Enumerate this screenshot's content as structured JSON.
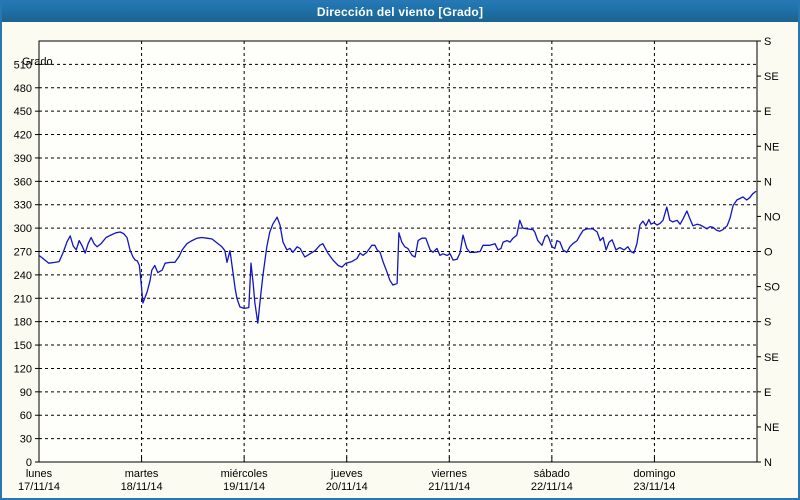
{
  "window": {
    "title": "Dirección del viento [Grado]"
  },
  "colors": {
    "titlebar": "#1e6da3",
    "window_border": "#2a76b2",
    "background": "#fbfbf2",
    "plot_background": "#fefefa",
    "grid": "#000000",
    "axis": "#000000",
    "line": "#1315c2",
    "title_text": "#ffffff"
  },
  "chart_data": {
    "type": "line",
    "title": "Dirección del viento [Grado]",
    "grid": {
      "style": "dashed",
      "horizontal_step_deg": 30,
      "vertical_at_day_starts": true
    },
    "legend": "none",
    "y_left": {
      "title": "Grado",
      "min": 0,
      "max": 540,
      "tick_step": 30,
      "tick_values": [
        0,
        30,
        60,
        90,
        120,
        150,
        180,
        210,
        240,
        270,
        300,
        330,
        360,
        390,
        420,
        450,
        480,
        510
      ]
    },
    "y_right": {
      "ticks": [
        {
          "v": 0,
          "label": "N"
        },
        {
          "v": 45,
          "label": "NE"
        },
        {
          "v": 90,
          "label": "E"
        },
        {
          "v": 135,
          "label": "SE"
        },
        {
          "v": 180,
          "label": "S"
        },
        {
          "v": 225,
          "label": "SO"
        },
        {
          "v": 270,
          "label": "O"
        },
        {
          "v": 315,
          "label": "NO"
        },
        {
          "v": 360,
          "label": "N"
        },
        {
          "v": 405,
          "label": "NE"
        },
        {
          "v": 450,
          "label": "E"
        },
        {
          "v": 495,
          "label": "SE"
        },
        {
          "v": 540,
          "label": "S"
        }
      ]
    },
    "x_axis": {
      "unit": "hours_from_monday_00",
      "min": 0,
      "max": 168,
      "day_tick_hours": [
        0,
        24,
        48,
        72,
        96,
        120,
        144
      ],
      "days": [
        {
          "name": "lunes",
          "date": "17/11/14"
        },
        {
          "name": "martes",
          "date": "18/11/14"
        },
        {
          "name": "miércoles",
          "date": "19/11/14"
        },
        {
          "name": "jueves",
          "date": "20/11/14"
        },
        {
          "name": "viernes",
          "date": "21/11/14"
        },
        {
          "name": "sábado",
          "date": "22/11/14"
        },
        {
          "name": "domingo",
          "date": "23/11/14"
        }
      ]
    },
    "series": [
      {
        "name": "Dirección del viento",
        "color": "#1315c2",
        "points": [
          [
            0,
            265
          ],
          [
            1.4,
            259
          ],
          [
            2.3,
            255
          ],
          [
            3.7,
            256
          ],
          [
            4.7,
            257
          ],
          [
            5.6,
            268
          ],
          [
            6.6,
            283
          ],
          [
            7.3,
            290
          ],
          [
            8,
            277
          ],
          [
            8.7,
            272
          ],
          [
            9.4,
            284
          ],
          [
            10.1,
            277
          ],
          [
            10.8,
            268
          ],
          [
            11.5,
            280
          ],
          [
            12.2,
            288
          ],
          [
            12.9,
            280
          ],
          [
            13.6,
            276
          ],
          [
            14.5,
            280
          ],
          [
            15.7,
            288
          ],
          [
            16.8,
            291
          ],
          [
            18,
            294
          ],
          [
            19,
            295
          ],
          [
            19.8,
            293
          ],
          [
            20.6,
            288
          ],
          [
            21.3,
            272
          ],
          [
            22,
            263
          ],
          [
            22.5,
            259
          ],
          [
            23,
            258
          ],
          [
            23.5,
            252
          ],
          [
            23.9,
            230
          ],
          [
            24.3,
            204
          ],
          [
            25.3,
            218
          ],
          [
            26,
            233
          ],
          [
            26.4,
            246
          ],
          [
            27.1,
            252
          ],
          [
            27.8,
            243
          ],
          [
            28.8,
            246
          ],
          [
            29.5,
            255
          ],
          [
            30.7,
            256
          ],
          [
            31.8,
            256
          ],
          [
            32.8,
            264
          ],
          [
            33.5,
            272
          ],
          [
            34.6,
            280
          ],
          [
            35.8,
            284
          ],
          [
            37,
            287
          ],
          [
            38.1,
            288
          ],
          [
            39.3,
            287
          ],
          [
            40.5,
            286
          ],
          [
            41.9,
            280
          ],
          [
            42.8,
            276
          ],
          [
            43.5,
            271
          ],
          [
            44,
            256
          ],
          [
            44.7,
            271
          ],
          [
            45.4,
            243
          ],
          [
            45.9,
            222
          ],
          [
            46.3,
            210
          ],
          [
            47,
            199
          ],
          [
            48,
            197
          ],
          [
            49.1,
            198
          ],
          [
            49.6,
            255
          ],
          [
            50.1,
            230
          ],
          [
            50.5,
            205
          ],
          [
            51.2,
            178
          ],
          [
            51.9,
            215
          ],
          [
            52.4,
            239
          ],
          [
            53.3,
            276
          ],
          [
            54,
            295
          ],
          [
            54.7,
            305
          ],
          [
            55.7,
            314
          ],
          [
            56.4,
            304
          ],
          [
            57.1,
            282
          ],
          [
            58,
            272
          ],
          [
            58.7,
            274
          ],
          [
            59.4,
            269
          ],
          [
            60.4,
            276
          ],
          [
            61.1,
            274
          ],
          [
            62.2,
            263
          ],
          [
            63.4,
            267
          ],
          [
            64.6,
            271
          ],
          [
            65.7,
            278
          ],
          [
            66.4,
            280
          ],
          [
            67.6,
            268
          ],
          [
            68.8,
            259
          ],
          [
            70,
            252
          ],
          [
            70.9,
            250
          ],
          [
            71.8,
            255
          ],
          [
            73.2,
            257
          ],
          [
            74.4,
            261
          ],
          [
            75.1,
            268
          ],
          [
            75.8,
            265
          ],
          [
            76.7,
            269
          ],
          [
            77.9,
            278
          ],
          [
            78.6,
            278
          ],
          [
            79.1,
            272
          ],
          [
            79.8,
            269
          ],
          [
            80.5,
            257
          ],
          [
            81.4,
            244
          ],
          [
            82.1,
            233
          ],
          [
            82.8,
            227
          ],
          [
            83.8,
            229
          ],
          [
            84.2,
            294
          ],
          [
            84.9,
            282
          ],
          [
            85.6,
            276
          ],
          [
            86.3,
            274
          ],
          [
            87.3,
            265
          ],
          [
            88,
            263
          ],
          [
            88.7,
            284
          ],
          [
            89.6,
            287
          ],
          [
            90.5,
            287
          ],
          [
            91.5,
            272
          ],
          [
            92.2,
            269
          ],
          [
            93.1,
            274
          ],
          [
            93.8,
            265
          ],
          [
            94.5,
            267
          ],
          [
            95.5,
            265
          ],
          [
            96.2,
            267
          ],
          [
            96.9,
            259
          ],
          [
            97.8,
            260
          ],
          [
            98.5,
            268
          ],
          [
            99.2,
            291
          ],
          [
            100.1,
            274
          ],
          [
            100.8,
            269
          ],
          [
            102,
            269
          ],
          [
            103.2,
            270
          ],
          [
            103.9,
            278
          ],
          [
            105.5,
            278
          ],
          [
            106.7,
            280
          ],
          [
            107.4,
            272
          ],
          [
            108.1,
            274
          ],
          [
            108.6,
            282
          ],
          [
            109.5,
            284
          ],
          [
            110.2,
            282
          ],
          [
            110.9,
            287
          ],
          [
            111.8,
            291
          ],
          [
            112.5,
            310
          ],
          [
            113.2,
            300
          ],
          [
            114.2,
            299
          ],
          [
            115.6,
            298
          ],
          [
            116,
            295
          ],
          [
            116.7,
            284
          ],
          [
            117.7,
            278
          ],
          [
            118.4,
            289
          ],
          [
            118.9,
            291
          ],
          [
            119.3,
            287
          ],
          [
            120,
            276
          ],
          [
            120.7,
            274
          ],
          [
            121.2,
            284
          ],
          [
            121.9,
            282
          ],
          [
            122.6,
            272
          ],
          [
            123.5,
            269
          ],
          [
            124.2,
            276
          ],
          [
            124.9,
            280
          ],
          [
            125.9,
            284
          ],
          [
            126.6,
            291
          ],
          [
            127.3,
            297
          ],
          [
            128.2,
            299
          ],
          [
            129.6,
            299
          ],
          [
            130.6,
            295
          ],
          [
            131.3,
            284
          ],
          [
            132,
            288
          ],
          [
            132.7,
            272
          ],
          [
            133.4,
            282
          ],
          [
            134.1,
            285
          ],
          [
            135,
            272
          ],
          [
            135.9,
            275
          ],
          [
            136.9,
            272
          ],
          [
            137.8,
            276
          ],
          [
            138.5,
            270
          ],
          [
            139.2,
            268
          ],
          [
            139.9,
            280
          ],
          [
            140.6,
            304
          ],
          [
            141.3,
            309
          ],
          [
            142,
            303
          ],
          [
            142.7,
            311
          ],
          [
            143.2,
            305
          ],
          [
            143.9,
            307
          ],
          [
            144.6,
            304
          ],
          [
            145.3,
            306
          ],
          [
            146,
            310
          ],
          [
            146.9,
            327
          ],
          [
            147.6,
            310
          ],
          [
            148.3,
            308
          ],
          [
            149.3,
            310
          ],
          [
            150,
            305
          ],
          [
            150.7,
            312
          ],
          [
            151.6,
            322
          ],
          [
            152.3,
            312
          ],
          [
            153,
            303
          ],
          [
            154,
            305
          ],
          [
            154.7,
            304
          ],
          [
            155.4,
            302
          ],
          [
            156.3,
            299
          ],
          [
            157,
            302
          ],
          [
            157.7,
            301
          ],
          [
            158.6,
            297
          ],
          [
            159.3,
            296
          ],
          [
            160,
            298
          ],
          [
            161,
            303
          ],
          [
            161.7,
            313
          ],
          [
            162.4,
            329
          ],
          [
            163.3,
            336
          ],
          [
            164,
            338
          ],
          [
            164.7,
            340
          ],
          [
            165.6,
            336
          ],
          [
            166.3,
            339
          ],
          [
            167,
            344
          ],
          [
            167.7,
            347
          ]
        ]
      }
    ]
  }
}
